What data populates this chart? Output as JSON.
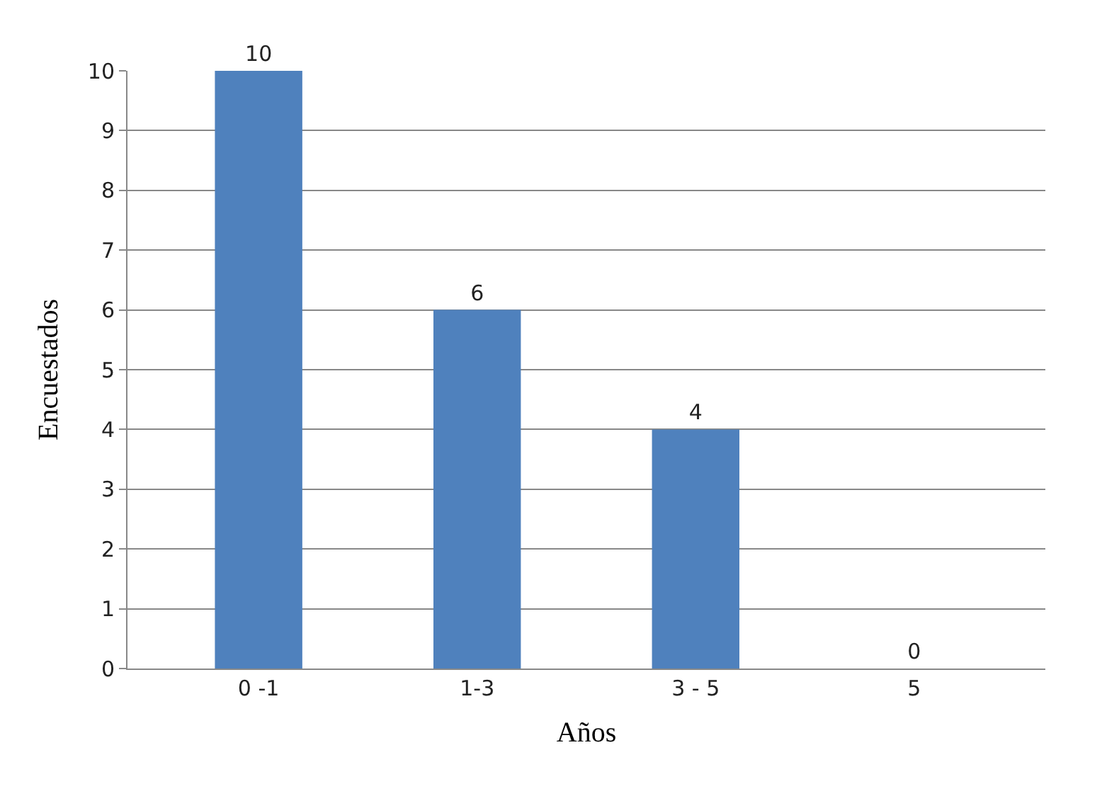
{
  "chart_data": {
    "type": "bar",
    "xlabel": "Años",
    "ylabel": "Encuestados",
    "categories": [
      "0 -1",
      "1-3",
      "3 - 5",
      "5"
    ],
    "values": [
      10,
      6,
      4,
      0
    ],
    "color": "#4f81bd",
    "ylim": [
      0,
      10
    ],
    "yticks": [
      0,
      1,
      2,
      3,
      4,
      5,
      6,
      7,
      8,
      9,
      10
    ],
    "grid": "y",
    "data_labels": true
  }
}
